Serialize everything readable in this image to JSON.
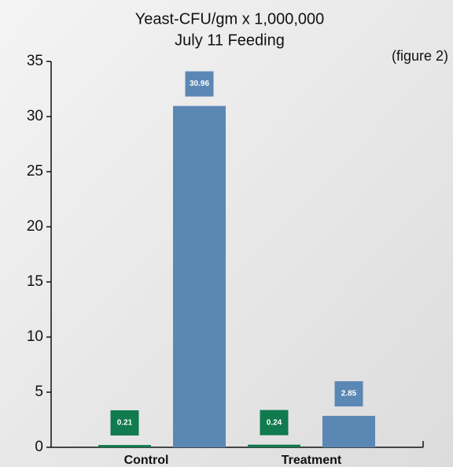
{
  "chart_data": {
    "type": "bar",
    "title": [
      "Yeast-CFU/gm x 1,000,000",
      "July 11 Feeding"
    ],
    "annotation": "(figure 2)",
    "categories": [
      "Control",
      "Treatment"
    ],
    "series": [
      {
        "color": "#117a4f",
        "values": [
          0.21,
          0.24
        ]
      },
      {
        "color": "#5b87b5",
        "values": [
          30.96,
          2.85
        ]
      }
    ],
    "ylim": [
      0,
      35
    ],
    "yticks": [
      0,
      5,
      10,
      15,
      20,
      25,
      30,
      35
    ]
  }
}
